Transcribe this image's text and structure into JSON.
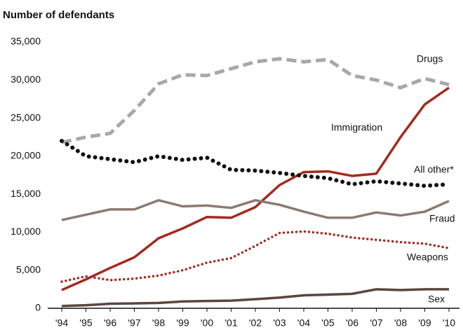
{
  "chart_data": {
    "type": "line",
    "title": "Number of defendants",
    "categories": [
      "'94",
      "'95",
      "'96",
      "'97",
      "'98",
      "'99",
      "'00",
      "'01",
      "'02",
      "'03",
      "'04",
      "'05",
      "'06",
      "'07",
      "'08",
      "'09",
      "'10"
    ],
    "ylim": [
      0,
      35000
    ],
    "yticks": [
      0,
      {
        "value": 5000,
        "label": "5,000"
      },
      {
        "value": 10000,
        "label": "10,000"
      },
      {
        "value": 15000,
        "label": "15,000"
      },
      {
        "value": 20000,
        "label": "20,000"
      },
      {
        "value": 25000,
        "label": "25,000"
      },
      {
        "value": 30000,
        "label": "30,000"
      },
      {
        "value": 35000,
        "label": "35,000"
      }
    ],
    "grid": false,
    "series": [
      {
        "name": "Drugs",
        "color": "#a8a8a8",
        "line_style": "dashed",
        "values": [
          21800,
          22500,
          23000,
          26000,
          29500,
          30700,
          30600,
          31500,
          32400,
          32800,
          32400,
          32700,
          30600,
          30000,
          29000,
          30200,
          29400
        ]
      },
      {
        "name": "Immigration",
        "color": "#a5291f",
        "line_style": "solid",
        "values": [
          2400,
          3800,
          5300,
          6700,
          9200,
          10500,
          12000,
          11900,
          13300,
          16200,
          17900,
          18000,
          17400,
          17700,
          22500,
          26800,
          29000
        ]
      },
      {
        "name": "All other*",
        "color": "#111111",
        "line_style": "dotted",
        "values": [
          22000,
          20000,
          19600,
          19200,
          20000,
          19500,
          19800,
          18200,
          18100,
          17800,
          17400,
          17100,
          16300,
          16700,
          16400,
          16100,
          16300
        ]
      },
      {
        "name": "Fraud",
        "color": "#8b7b72",
        "line_style": "solid",
        "values": [
          11600,
          12300,
          13000,
          13000,
          14200,
          13400,
          13500,
          13200,
          14200,
          13600,
          12700,
          11900,
          11900,
          12600,
          12200,
          12700,
          14100
        ]
      },
      {
        "name": "Weapons",
        "color": "#a5291f",
        "line_style": "dotted-thin",
        "values": [
          3500,
          4200,
          3700,
          3900,
          4300,
          5000,
          6000,
          6600,
          8200,
          9900,
          10100,
          9800,
          9300,
          9000,
          8700,
          8500,
          7900
        ]
      },
      {
        "name": "Sex",
        "color": "#5a4740",
        "line_style": "solid",
        "values": [
          300,
          400,
          600,
          650,
          700,
          900,
          950,
          1000,
          1200,
          1400,
          1700,
          1800,
          1900,
          2500,
          2400,
          2500,
          2500
        ]
      }
    ]
  }
}
